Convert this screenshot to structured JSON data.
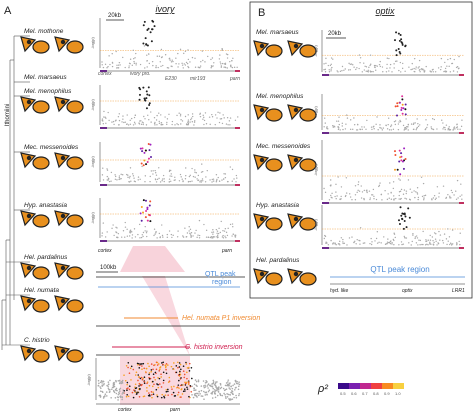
{
  "panel_a": {
    "letter": "A",
    "gene": "ivory",
    "clade": "Ithomiini",
    "species": [
      "Mel. mothone",
      "Mel. marsaeus",
      "Mel. menophilus",
      "Mec. messenoides",
      "Hyp. anastasia",
      "Hel. pardalinus",
      "Hel. numata",
      "C. histrio"
    ],
    "ylabel": "-log(p)",
    "scale_top": "20kb",
    "gene_labels_top": [
      "cortex",
      "ivory pro.",
      "E230",
      "mir193",
      "parn"
    ],
    "gene_labels_mid": [
      "cortex",
      "parn"
    ],
    "scale_bottom": "100kb",
    "qtl": [
      "QTL peak",
      "region"
    ],
    "inversions": [
      "Hel. numata P1 inversion",
      "C. histrio inversion"
    ],
    "gene_labels_bottom": [
      "cortex",
      "parn"
    ]
  },
  "panel_b": {
    "letter": "B",
    "gene": "optix",
    "species": [
      "Mel. marsaeus",
      "Mel. menophilus",
      "Mec. messenoides",
      "Hyp. anastasia",
      "Hel. pardalinus"
    ],
    "scale_top": "20kb",
    "ylabel": "-log(p)",
    "qtl": "QTL peak region",
    "gene_labels": [
      "hyd. like",
      "optix",
      "LRR1"
    ]
  },
  "legend": {
    "title": "ρ²",
    "ticks": [
      "0.5",
      "0.6",
      "0.7",
      "0.8",
      "0.9",
      "1.0"
    ]
  }
}
